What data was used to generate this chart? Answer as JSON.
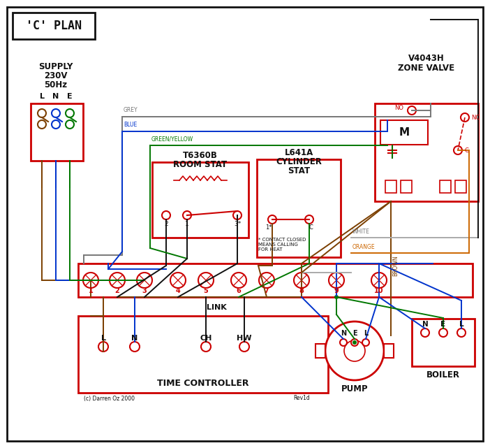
{
  "title": "'C' PLAN",
  "bg_color": "#ffffff",
  "red": "#cc0000",
  "blue": "#0033cc",
  "green": "#007700",
  "grey": "#777777",
  "brown": "#7B3F00",
  "orange": "#CC6600",
  "black": "#111111",
  "white_wire": "#aaaaaa",
  "supply_text": [
    "SUPPLY",
    "230V",
    "50Hz"
  ],
  "supply_labels": [
    "L",
    "N",
    "E"
  ],
  "zone_valve_title1": "V4043H",
  "zone_valve_title2": "ZONE VALVE",
  "room_stat_title1": "T6360B",
  "room_stat_title2": "ROOM STAT",
  "cyl_stat_lines": [
    "L641A",
    "CYLINDER",
    "STAT"
  ],
  "time_ctrl_title": "TIME CONTROLLER",
  "terminal_labels": [
    "1",
    "2",
    "3",
    "4",
    "5",
    "6",
    "7",
    "8",
    "9",
    "10"
  ],
  "tc_labels": [
    "L",
    "N",
    "CH",
    "HW"
  ],
  "pump_title": "PUMP",
  "boiler_title": "BOILER",
  "pump_labels": [
    "N",
    "E",
    "L"
  ],
  "boiler_labels": [
    "N",
    "E",
    "L"
  ],
  "contact_note": "* CONTACT CLOSED\nMEANS CALLING\nFOR HEAT",
  "link_label": "LINK",
  "copyright": "(c) Darren Oz 2000",
  "rev": "Rev1d",
  "grey_label": "GREY",
  "blue_label": "BLUE",
  "gy_label": "GREEN/YELLOW",
  "brown_label": "BROWN",
  "white_label": "WHITE",
  "orange_label": "ORANGE"
}
